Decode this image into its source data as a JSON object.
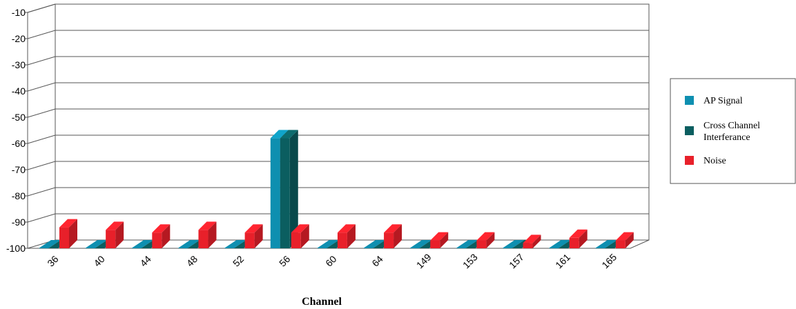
{
  "chart_data": {
    "type": "bar",
    "title": "",
    "xlabel": "Channel",
    "ylabel": "",
    "ylim": [
      -100,
      -10
    ],
    "yticks": [
      -10,
      -20,
      -30,
      -40,
      -50,
      -60,
      -70,
      -80,
      -90,
      -100
    ],
    "grid": true,
    "legend_position": "right",
    "categories": [
      "36",
      "40",
      "44",
      "48",
      "52",
      "56",
      "60",
      "64",
      "149",
      "153",
      "157",
      "161",
      "165"
    ],
    "series": [
      {
        "name": "AP Signal",
        "color": "#0e8fb0",
        "values": [
          -100,
          -100,
          -100,
          -100,
          -100,
          -58,
          -100,
          -100,
          -100,
          -100,
          -100,
          -100,
          -100
        ]
      },
      {
        "name": "Cross Channel Interferance",
        "color": "#0b5e60",
        "values": [
          -100,
          -100,
          -100,
          -100,
          -100,
          -58,
          -100,
          -100,
          -100,
          -100,
          -100,
          -100,
          -100
        ]
      },
      {
        "name": "Noise",
        "color": "#e8202a",
        "values": [
          -92,
          -93,
          -94,
          -93,
          -94,
          -94,
          -94,
          -94,
          -97,
          -97,
          -98,
          -96,
          -97
        ]
      }
    ]
  }
}
